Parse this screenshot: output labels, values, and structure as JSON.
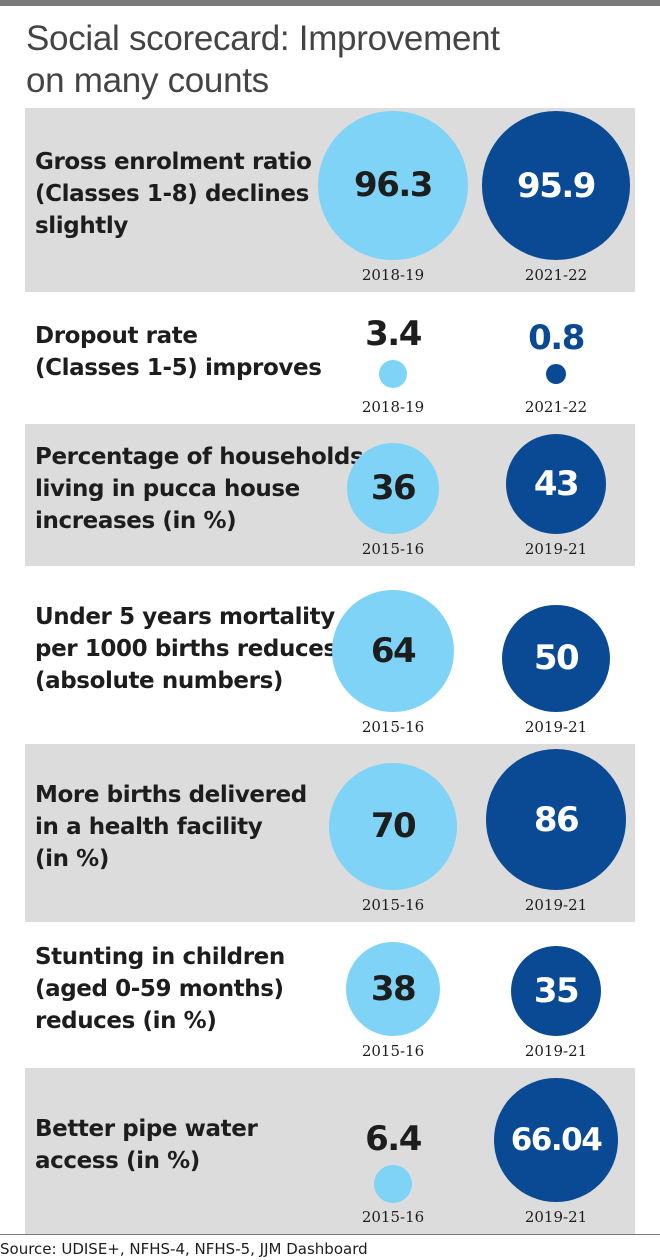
{
  "title_lines": [
    "Social scorecard: Improvement",
    "on many counts"
  ],
  "source": "Source: UDISE+, NFHS-4, NFHS-5, JJM Dashboard",
  "colors": {
    "first_period": "#7fd3f7",
    "second_period": "#0a4a94",
    "shaded_row": "#dcdcdc"
  },
  "chart_data": {
    "type": "table",
    "title": "Social scorecard: Improvement on many counts",
    "rows": [
      {
        "label_lines": [
          "Gross enrolment ratio",
          "(Classes 1-8) declines",
          "slightly"
        ],
        "values": [
          "96.3",
          "95.9"
        ],
        "years": [
          "2018-19",
          "2021-22"
        ]
      },
      {
        "label_lines": [
          "Dropout rate",
          "(Classes 1-5) improves"
        ],
        "values": [
          "3.4",
          "0.8"
        ],
        "years": [
          "2018-19",
          "2021-22"
        ]
      },
      {
        "label_lines": [
          "Percentage of households",
          "living in pucca house",
          "increases (in %)"
        ],
        "values": [
          "36",
          "43"
        ],
        "years": [
          "2015-16",
          "2019-21"
        ]
      },
      {
        "label_lines": [
          "Under 5 years mortality",
          "per 1000 births reduces",
          "(absolute numbers)"
        ],
        "values": [
          "64",
          "50"
        ],
        "years": [
          "2015-16",
          "2019-21"
        ]
      },
      {
        "label_lines": [
          "More births delivered",
          "in a health facility",
          "(in %)"
        ],
        "values": [
          "70",
          "86"
        ],
        "years": [
          "2015-16",
          "2019-21"
        ]
      },
      {
        "label_lines": [
          "Stunting in children",
          "(aged 0-59 months)",
          "reduces (in %)"
        ],
        "values": [
          "38",
          "35"
        ],
        "years": [
          "2015-16",
          "2019-21"
        ]
      },
      {
        "label_lines": [
          "Better pipe water",
          "access (in %)"
        ],
        "values": [
          "6.4",
          "66.04"
        ],
        "years": [
          "2015-16",
          "2019-21"
        ]
      }
    ]
  }
}
